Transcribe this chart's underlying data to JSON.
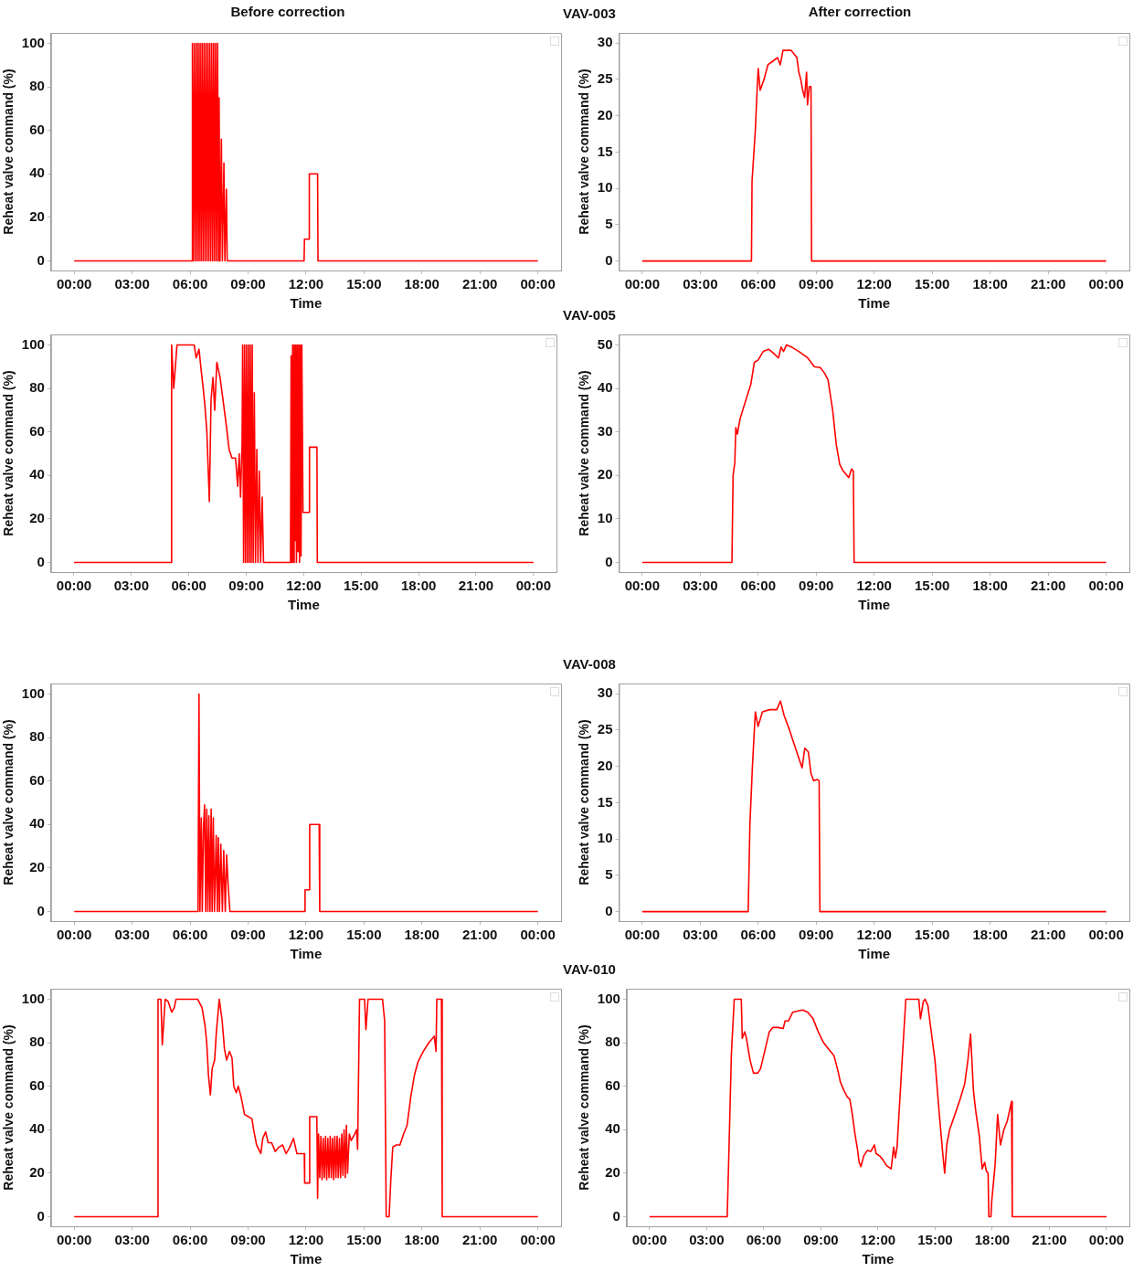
{
  "chart_data": [
    {
      "type": "line",
      "title": "Before correction",
      "xlabel": "Time",
      "ylabel": "Reheat valve command (%)",
      "xlim": [
        -1.2,
        25.2
      ],
      "ylim": [
        -4.4,
        104.8
      ],
      "xticks": [
        {
          "value": 0,
          "label": "00:00"
        },
        {
          "value": 3,
          "label": "03:00"
        },
        {
          "value": 6,
          "label": "06:00"
        },
        {
          "value": 9,
          "label": "09:00"
        },
        {
          "value": 12,
          "label": "12:00"
        },
        {
          "value": 15,
          "label": "15:00"
        },
        {
          "value": 18,
          "label": "18:00"
        },
        {
          "value": 21,
          "label": "21:00"
        },
        {
          "value": 24,
          "label": "00:00"
        }
      ],
      "yticks": [
        0,
        20,
        40,
        60,
        80,
        100
      ],
      "grid": false,
      "legend": false,
      "series": [
        {
          "color": "#ff0000",
          "x": [
            0,
            6.1,
            6.12,
            6.17,
            6.22,
            6.27,
            6.32,
            6.37,
            6.42,
            6.47,
            6.52,
            6.57,
            6.62,
            6.67,
            6.72,
            6.77,
            6.82,
            6.87,
            6.92,
            6.97,
            7.02,
            7.07,
            7.12,
            7.17,
            7.22,
            7.27,
            7.32,
            7.37,
            7.42,
            7.47,
            7.5,
            7.55,
            7.62,
            7.67,
            7.75,
            7.8,
            7.88,
            7.92,
            11.9,
            11.92,
            12.15,
            12.17,
            12.6,
            12.62,
            24
          ],
          "values": [
            0,
            0,
            100,
            0,
            100,
            0,
            100,
            0,
            100,
            0,
            100,
            0,
            100,
            0,
            100,
            0,
            100,
            0,
            100,
            0,
            100,
            0,
            100,
            0,
            100,
            0,
            100,
            0,
            100,
            0,
            75,
            0,
            56,
            0,
            45,
            0,
            33,
            0,
            0,
            10,
            10,
            40,
            40,
            0,
            0
          ]
        }
      ]
    },
    {
      "type": "line",
      "title": "After correction",
      "annotations": [
        "VAV-003"
      ],
      "xlabel": "Time",
      "ylabel": "Reheat valve command (%)",
      "xlim": [
        -1.2,
        25.2
      ],
      "ylim": [
        -1.3,
        31.4
      ],
      "xticks": [
        {
          "value": 0,
          "label": "00:00"
        },
        {
          "value": 3,
          "label": "03:00"
        },
        {
          "value": 6,
          "label": "06:00"
        },
        {
          "value": 9,
          "label": "09:00"
        },
        {
          "value": 12,
          "label": "12:00"
        },
        {
          "value": 15,
          "label": "15:00"
        },
        {
          "value": 18,
          "label": "18:00"
        },
        {
          "value": 21,
          "label": "21:00"
        },
        {
          "value": 24,
          "label": "00:00"
        }
      ],
      "yticks": [
        0,
        5,
        10,
        15,
        20,
        25,
        30
      ],
      "grid": false,
      "legend": false,
      "series": [
        {
          "color": "#ff0000",
          "x": [
            0,
            5.65,
            5.68,
            5.85,
            5.95,
            6.0,
            6.1,
            6.3,
            6.5,
            6.75,
            7.0,
            7.14,
            7.28,
            7.5,
            7.7,
            7.85,
            8.0,
            8.1,
            8.2,
            8.3,
            8.4,
            8.5,
            8.55,
            8.64,
            8.73,
            8.76,
            24
          ],
          "values": [
            0,
            0,
            11,
            18,
            24,
            26.5,
            23.5,
            25,
            27,
            27.5,
            28,
            27,
            29,
            29,
            29,
            28.5,
            28,
            26,
            25,
            23.5,
            22.5,
            26,
            21.5,
            24,
            24,
            0,
            0
          ]
        }
      ]
    },
    {
      "type": "line",
      "xlabel": "Time",
      "ylabel": "Reheat valve command (%)",
      "xlim": [
        -1.2,
        25.2
      ],
      "ylim": [
        -4.4,
        104.8
      ],
      "xticks": [
        {
          "value": 0,
          "label": "00:00"
        },
        {
          "value": 3,
          "label": "03:00"
        },
        {
          "value": 6,
          "label": "06:00"
        },
        {
          "value": 9,
          "label": "09:00"
        },
        {
          "value": 12,
          "label": "12:00"
        },
        {
          "value": 15,
          "label": "15:00"
        },
        {
          "value": 18,
          "label": "18:00"
        },
        {
          "value": 21,
          "label": "21:00"
        },
        {
          "value": 24,
          "label": "00:00"
        }
      ],
      "yticks": [
        0,
        20,
        40,
        60,
        80,
        100
      ],
      "grid": false,
      "legend": false,
      "series": [
        {
          "color": "#ff0000",
          "x": [
            0,
            5.08,
            5.1,
            5.21,
            5.38,
            6.28,
            6.38,
            6.53,
            6.66,
            6.75,
            6.84,
            6.94,
            7.07,
            7.16,
            7.26,
            7.35,
            7.46,
            7.63,
            7.78,
            7.97,
            8.1,
            8.25,
            8.44,
            8.55,
            8.63,
            8.7,
            8.78,
            8.81,
            8.86,
            8.91,
            8.96,
            9.01,
            9.06,
            9.11,
            9.16,
            9.21,
            9.26,
            9.31,
            9.36,
            9.42,
            9.48,
            9.55,
            9.61,
            9.68,
            9.75,
            9.83,
            9.9,
            9.94,
            11.31,
            11.34,
            11.38,
            11.42,
            11.46,
            11.5,
            11.54,
            11.58,
            11.62,
            11.66,
            11.7,
            11.74,
            11.78,
            11.82,
            11.86,
            11.9,
            11.96,
            12.28,
            12.3,
            12.69,
            12.71,
            24
          ],
          "values": [
            0,
            0,
            100,
            80,
            100,
            100,
            94,
            98,
            87,
            80,
            72,
            60,
            28,
            75,
            85,
            70,
            92,
            85,
            75,
            62,
            52,
            48,
            48,
            35,
            50,
            30,
            55,
            100,
            0,
            100,
            0,
            100,
            0,
            100,
            0,
            100,
            0,
            100,
            0,
            78,
            0,
            52,
            0,
            42,
            0,
            30,
            0,
            0,
            0,
            95,
            0,
            100,
            0,
            100,
            10,
            100,
            0,
            100,
            5,
            100,
            0,
            100,
            3,
            100,
            23,
            23,
            53,
            53,
            0,
            0
          ]
        }
      ]
    },
    {
      "type": "line",
      "annotations": [
        "VAV-005"
      ],
      "xlabel": "Time",
      "ylabel": "Reheat valve command (%)",
      "xlim": [
        -1.2,
        25.2
      ],
      "ylim": [
        -2.2,
        52.4
      ],
      "xticks": [
        {
          "value": 0,
          "label": "00:00"
        },
        {
          "value": 3,
          "label": "03:00"
        },
        {
          "value": 6,
          "label": "06:00"
        },
        {
          "value": 9,
          "label": "09:00"
        },
        {
          "value": 12,
          "label": "12:00"
        },
        {
          "value": 15,
          "label": "15:00"
        },
        {
          "value": 18,
          "label": "18:00"
        },
        {
          "value": 21,
          "label": "21:00"
        },
        {
          "value": 24,
          "label": "00:00"
        }
      ],
      "yticks": [
        0,
        10,
        20,
        30,
        40,
        50
      ],
      "grid": false,
      "legend": false,
      "series": [
        {
          "color": "#ff0000",
          "x": [
            0,
            4.64,
            4.7,
            4.79,
            4.84,
            4.92,
            5.06,
            5.34,
            5.62,
            5.8,
            5.99,
            6.26,
            6.54,
            6.81,
            7.05,
            7.18,
            7.31,
            7.46,
            7.73,
            8.1,
            8.56,
            8.9,
            9.21,
            9.43,
            9.61,
            9.85,
            10.04,
            10.22,
            10.4,
            10.59,
            10.68,
            10.83,
            10.92,
            10.96,
            24
          ],
          "values": [
            0,
            0,
            20,
            23,
            31,
            29.5,
            33,
            37,
            41,
            46,
            46.5,
            48.5,
            49,
            48,
            47,
            49.5,
            48.5,
            50,
            49.5,
            48.5,
            47,
            45,
            44.8,
            43.5,
            42,
            35,
            27,
            22.5,
            21,
            20,
            19.5,
            21.5,
            21,
            0,
            0
          ]
        }
      ]
    },
    {
      "type": "line",
      "xlabel": "Time",
      "ylabel": "Reheat valve command (%)",
      "xlim": [
        -1.2,
        25.2
      ],
      "ylim": [
        -4.4,
        104.8
      ],
      "xticks": [
        {
          "value": 0,
          "label": "00:00"
        },
        {
          "value": 3,
          "label": "03:00"
        },
        {
          "value": 6,
          "label": "06:00"
        },
        {
          "value": 9,
          "label": "09:00"
        },
        {
          "value": 12,
          "label": "12:00"
        },
        {
          "value": 15,
          "label": "15:00"
        },
        {
          "value": 18,
          "label": "18:00"
        },
        {
          "value": 21,
          "label": "21:00"
        },
        {
          "value": 24,
          "label": "00:00"
        }
      ],
      "yticks": [
        0,
        20,
        40,
        60,
        80,
        100
      ],
      "grid": false,
      "legend": false,
      "series": [
        {
          "color": "#ff0000",
          "x": [
            0,
            6.41,
            6.46,
            6.51,
            6.58,
            6.63,
            6.69,
            6.75,
            6.81,
            6.86,
            6.92,
            6.97,
            7.03,
            7.09,
            7.14,
            7.2,
            7.26,
            7.35,
            7.41,
            7.46,
            7.52,
            7.59,
            7.67,
            7.74,
            7.82,
            7.89,
            7.97,
            8.06,
            11.91,
            11.95,
            12.15,
            12.19,
            12.68,
            12.71,
            24
          ],
          "values": [
            0,
            0,
            100,
            0,
            43,
            0,
            38,
            49,
            0,
            47,
            0,
            44,
            0,
            47,
            0,
            43,
            0,
            35,
            0,
            34,
            0,
            31,
            0,
            28,
            0,
            26,
            12,
            0,
            0,
            10,
            10,
            40,
            40,
            0,
            0
          ]
        }
      ]
    },
    {
      "type": "line",
      "annotations": [
        "VAV-008"
      ],
      "xlabel": "Time",
      "ylabel": "Reheat valve command (%)",
      "xlim": [
        -1.2,
        25.2
      ],
      "ylim": [
        -1.3,
        31.4
      ],
      "xticks": [
        {
          "value": 0,
          "label": "00:00"
        },
        {
          "value": 3,
          "label": "03:00"
        },
        {
          "value": 6,
          "label": "06:00"
        },
        {
          "value": 9,
          "label": "09:00"
        },
        {
          "value": 12,
          "label": "12:00"
        },
        {
          "value": 15,
          "label": "15:00"
        },
        {
          "value": 18,
          "label": "18:00"
        },
        {
          "value": 21,
          "label": "21:00"
        },
        {
          "value": 24,
          "label": "00:00"
        }
      ],
      "yticks": [
        0,
        5,
        10,
        15,
        20,
        25,
        30
      ],
      "grid": false,
      "legend": false,
      "series": [
        {
          "color": "#ff0000",
          "x": [
            0,
            5.48,
            5.57,
            5.7,
            5.85,
            5.99,
            6.22,
            6.59,
            6.96,
            7.15,
            7.34,
            7.62,
            7.99,
            8.27,
            8.41,
            8.59,
            8.73,
            8.87,
            9.05,
            9.15,
            9.19,
            24
          ],
          "values": [
            0,
            0,
            12,
            20,
            27.5,
            25.5,
            27.5,
            27.8,
            27.8,
            29,
            27,
            25,
            22,
            19.8,
            22.5,
            22,
            19,
            18,
            18.2,
            18,
            0,
            0
          ]
        }
      ]
    },
    {
      "type": "line",
      "xlabel": "Time",
      "ylabel": "Reheat valve command (%)",
      "xlim": [
        -1.2,
        25.2
      ],
      "ylim": [
        -4.4,
        104.8
      ],
      "xticks": [
        {
          "value": 0,
          "label": "00:00"
        },
        {
          "value": 3,
          "label": "03:00"
        },
        {
          "value": 6,
          "label": "06:00"
        },
        {
          "value": 9,
          "label": "09:00"
        },
        {
          "value": 12,
          "label": "12:00"
        },
        {
          "value": 15,
          "label": "15:00"
        },
        {
          "value": 18,
          "label": "18:00"
        },
        {
          "value": 21,
          "label": "21:00"
        },
        {
          "value": 24,
          "label": "00:00"
        }
      ],
      "yticks": [
        0,
        20,
        40,
        60,
        80,
        100
      ],
      "grid": false,
      "legend": false,
      "series": [
        {
          "color": "#ff0000",
          "x": [
            0,
            4.3,
            4.34,
            4.49,
            4.56,
            4.71,
            4.86,
            5.05,
            5.18,
            5.27,
            6.39,
            6.62,
            6.77,
            6.86,
            6.95,
            7.05,
            7.14,
            7.27,
            7.36,
            7.51,
            7.66,
            7.78,
            7.89,
            8.04,
            8.17,
            8.26,
            8.39,
            8.49,
            8.64,
            8.82,
            9.01,
            9.2,
            9.29,
            9.44,
            9.66,
            9.76,
            9.91,
            10.04,
            10.22,
            10.41,
            10.6,
            10.79,
            10.97,
            11.16,
            11.35,
            11.53,
            11.72,
            11.91,
            11.93,
            12.15,
            12.19,
            12.56,
            12.6,
            12.65,
            12.71,
            12.77,
            12.83,
            12.89,
            12.95,
            13.01,
            13.07,
            13.13,
            13.19,
            13.25,
            13.31,
            13.37,
            13.43,
            13.49,
            13.55,
            13.61,
            13.67,
            13.73,
            13.79,
            13.85,
            13.91,
            13.97,
            14.03,
            14.09,
            14.15,
            14.24,
            14.34,
            14.52,
            14.62,
            14.67,
            14.77,
            15.03,
            15.1,
            15.21,
            15.96,
            16.07,
            16.15,
            16.3,
            16.39,
            16.49,
            16.67,
            16.86,
            17.05,
            17.23,
            17.42,
            17.61,
            17.79,
            18.07,
            18.36,
            18.64,
            18.73,
            18.77,
            19.01,
            19.05,
            24
          ],
          "values": [
            0,
            0,
            100,
            100,
            79,
            100,
            99,
            94,
            96,
            100,
            100,
            96,
            88,
            80,
            65,
            56,
            68,
            72,
            85,
            100,
            90,
            77,
            72,
            76,
            73,
            60,
            57,
            60,
            55,
            47,
            46,
            45,
            40,
            33,
            29,
            36,
            39,
            34,
            34,
            30,
            32,
            33,
            29,
            32,
            36,
            29,
            29,
            29,
            15.5,
            15.5,
            46,
            46,
            8.5,
            38,
            18,
            37,
            17,
            36,
            18,
            37,
            17,
            36,
            18,
            37,
            18,
            36,
            17,
            37,
            18,
            37,
            18,
            36,
            18,
            38,
            19,
            40,
            18,
            42,
            20,
            38,
            35,
            38,
            40,
            31,
            100,
            100,
            86,
            100,
            100,
            90,
            0,
            0,
            17,
            32,
            33,
            33,
            38,
            42,
            55,
            65,
            71,
            76,
            80,
            83,
            76,
            100,
            100,
            0,
            0
          ]
        }
      ]
    },
    {
      "type": "line",
      "annotations": [
        "VAV-010"
      ],
      "xlabel": "Time",
      "ylabel": "Reheat valve command (%)",
      "xlim": [
        -1.2,
        25.2
      ],
      "ylim": [
        -4.4,
        104.8
      ],
      "xticks": [
        {
          "value": 0,
          "label": "00:00"
        },
        {
          "value": 3,
          "label": "03:00"
        },
        {
          "value": 6,
          "label": "06:00"
        },
        {
          "value": 9,
          "label": "09:00"
        },
        {
          "value": 12,
          "label": "12:00"
        },
        {
          "value": 15,
          "label": "15:00"
        },
        {
          "value": 18,
          "label": "18:00"
        },
        {
          "value": 21,
          "label": "21:00"
        },
        {
          "value": 24,
          "label": "00:00"
        }
      ],
      "yticks": [
        0,
        20,
        40,
        60,
        80,
        100
      ],
      "grid": false,
      "legend": false,
      "series": [
        {
          "color": "#ff0000",
          "x": [
            0,
            4.08,
            4.17,
            4.3,
            4.45,
            4.82,
            4.87,
            5.0,
            5.09,
            5.28,
            5.46,
            5.68,
            5.83,
            6.1,
            6.29,
            6.47,
            6.75,
            7.02,
            7.12,
            7.3,
            7.52,
            7.76,
            8.04,
            8.31,
            8.59,
            8.86,
            9.14,
            9.41,
            9.69,
            9.87,
            10.02,
            10.21,
            10.39,
            10.52,
            10.65,
            10.79,
            10.92,
            11.01,
            11.1,
            11.25,
            11.44,
            11.62,
            11.81,
            11.9,
            12.08,
            12.27,
            12.45,
            12.69,
            12.82,
            12.91,
            13.0,
            13.22,
            13.46,
            14.14,
            14.23,
            14.38,
            14.47,
            14.62,
            14.75,
            14.99,
            15.21,
            15.39,
            15.5,
            15.61,
            15.76,
            16.04,
            16.31,
            16.55,
            16.72,
            16.86,
            17.01,
            17.14,
            17.32,
            17.47,
            17.6,
            17.69,
            17.78,
            17.82,
            17.93,
            17.97,
            18.15,
            18.28,
            18.43,
            18.61,
            18.79,
            19.01,
            19.05,
            24
          ],
          "values": [
            0,
            0,
            30,
            75,
            100,
            100,
            82,
            85,
            82,
            72,
            66,
            66,
            68,
            78,
            85,
            87,
            87,
            86.5,
            90,
            90,
            94,
            94.5,
            95,
            94,
            91,
            85,
            80,
            77,
            74,
            68,
            62,
            58,
            55,
            54,
            47,
            38,
            31,
            25,
            23,
            28,
            30.5,
            30,
            33,
            29,
            28,
            26,
            23.5,
            22,
            32,
            27,
            32,
            65,
            100,
            100,
            91,
            99,
            100,
            97,
            88,
            72,
            48,
            30,
            20,
            33,
            40,
            47,
            54,
            61,
            72,
            84,
            58,
            48,
            37,
            22,
            25,
            21,
            20,
            0,
            0,
            7,
            24,
            47,
            33,
            40,
            44,
            53,
            0,
            0
          ]
        }
      ]
    }
  ]
}
